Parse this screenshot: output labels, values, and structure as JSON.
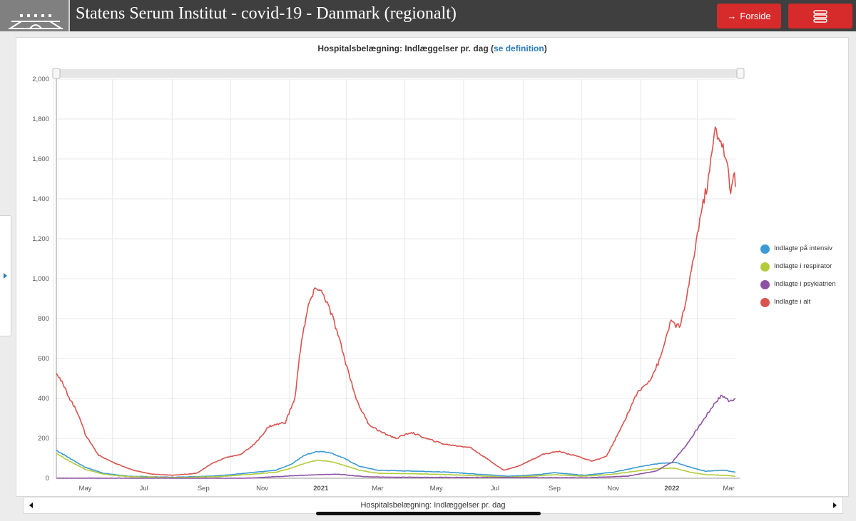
{
  "header": {
    "title": "Statens Serum Institut - covid-19 - Danmark (regionalt)",
    "forside_label": "Forside",
    "menu_icon": "hamburger-icon"
  },
  "chart": {
    "title_main": "Hospitalsbelægning: Indlæggelser pr. dag (",
    "title_link": "se definition",
    "title_end": ")",
    "bottom_label": "Hospitalsbelægning: Indlæggelser pr. dag"
  },
  "legend": [
    {
      "label": "Indlagte på intensiv",
      "color": "#3a9ad4"
    },
    {
      "label": "Indlagte i respirator",
      "color": "#b3cc3c"
    },
    {
      "label": "Indlagte i psykiatrien",
      "color": "#8e52a5"
    },
    {
      "label": "Indlagte i alt",
      "color": "#d9534f"
    }
  ],
  "chart_data": {
    "type": "line",
    "x_ticks": [
      {
        "label": "May",
        "date": "2020-05-01",
        "bold": false
      },
      {
        "label": "Jul",
        "date": "2020-07-01",
        "bold": false
      },
      {
        "label": "Sep",
        "date": "2020-09-01",
        "bold": false
      },
      {
        "label": "Nov",
        "date": "2020-11-01",
        "bold": false
      },
      {
        "label": "2021",
        "date": "2021-01-01",
        "bold": true
      },
      {
        "label": "Mar",
        "date": "2021-03-01",
        "bold": false
      },
      {
        "label": "May",
        "date": "2021-05-01",
        "bold": false
      },
      {
        "label": "Jul",
        "date": "2021-07-01",
        "bold": false
      },
      {
        "label": "Sep",
        "date": "2021-09-01",
        "bold": false
      },
      {
        "label": "Nov",
        "date": "2021-11-01",
        "bold": false
      },
      {
        "label": "2022",
        "date": "2022-01-01",
        "bold": true
      },
      {
        "label": "Mar",
        "date": "2022-03-01",
        "bold": false
      }
    ],
    "y_ticks": [
      "0",
      "200",
      "400",
      "600",
      "800",
      "1,000",
      "1,200",
      "1,400",
      "1,600",
      "1,800",
      "2,000"
    ],
    "ylim": [
      0,
      2000
    ],
    "xlim": [
      "2020-04-01",
      "2022-03-08"
    ],
    "grid": true,
    "legend_position": "right",
    "series": [
      {
        "name": "Indlagte på intensiv",
        "color": "#3a9ad4",
        "points": [
          [
            "2020-04-01",
            140
          ],
          [
            "2020-04-15",
            100
          ],
          [
            "2020-05-01",
            55
          ],
          [
            "2020-05-20",
            25
          ],
          [
            "2020-06-15",
            10
          ],
          [
            "2020-08-01",
            5
          ],
          [
            "2020-09-15",
            12
          ],
          [
            "2020-10-15",
            25
          ],
          [
            "2020-11-15",
            40
          ],
          [
            "2020-12-01",
            70
          ],
          [
            "2020-12-15",
            115
          ],
          [
            "2020-12-28",
            135
          ],
          [
            "2021-01-10",
            130
          ],
          [
            "2021-01-25",
            100
          ],
          [
            "2021-02-10",
            60
          ],
          [
            "2021-03-01",
            40
          ],
          [
            "2021-04-15",
            35
          ],
          [
            "2021-05-15",
            30
          ],
          [
            "2021-06-15",
            20
          ],
          [
            "2021-07-15",
            10
          ],
          [
            "2021-08-15",
            18
          ],
          [
            "2021-09-01",
            28
          ],
          [
            "2021-10-01",
            15
          ],
          [
            "2021-11-01",
            30
          ],
          [
            "2021-12-01",
            60
          ],
          [
            "2021-12-20",
            75
          ],
          [
            "2022-01-05",
            80
          ],
          [
            "2022-01-20",
            55
          ],
          [
            "2022-02-05",
            35
          ],
          [
            "2022-02-25",
            40
          ],
          [
            "2022-03-08",
            30
          ]
        ]
      },
      {
        "name": "Indlagte i respirator",
        "color": "#b3cc3c",
        "points": [
          [
            "2020-04-01",
            125
          ],
          [
            "2020-04-15",
            85
          ],
          [
            "2020-05-01",
            45
          ],
          [
            "2020-05-20",
            20
          ],
          [
            "2020-06-15",
            8
          ],
          [
            "2020-08-01",
            3
          ],
          [
            "2020-09-15",
            8
          ],
          [
            "2020-10-15",
            18
          ],
          [
            "2020-11-15",
            30
          ],
          [
            "2020-12-01",
            50
          ],
          [
            "2020-12-15",
            75
          ],
          [
            "2020-12-28",
            90
          ],
          [
            "2021-01-10",
            85
          ],
          [
            "2021-01-25",
            65
          ],
          [
            "2021-02-10",
            40
          ],
          [
            "2021-03-01",
            25
          ],
          [
            "2021-04-15",
            22
          ],
          [
            "2021-05-15",
            18
          ],
          [
            "2021-06-15",
            12
          ],
          [
            "2021-07-15",
            5
          ],
          [
            "2021-08-15",
            12
          ],
          [
            "2021-09-01",
            18
          ],
          [
            "2021-10-01",
            10
          ],
          [
            "2021-11-01",
            20
          ],
          [
            "2021-12-01",
            40
          ],
          [
            "2021-12-20",
            50
          ],
          [
            "2022-01-05",
            50
          ],
          [
            "2022-01-20",
            30
          ],
          [
            "2022-02-05",
            18
          ],
          [
            "2022-02-25",
            15
          ],
          [
            "2022-03-08",
            10
          ]
        ]
      },
      {
        "name": "Indlagte i psykiatrien",
        "color": "#8e52a5",
        "points": [
          [
            "2020-04-01",
            0
          ],
          [
            "2020-10-15",
            0
          ],
          [
            "2020-12-01",
            12
          ],
          [
            "2020-12-28",
            18
          ],
          [
            "2021-01-20",
            20
          ],
          [
            "2021-02-15",
            8
          ],
          [
            "2021-03-15",
            5
          ],
          [
            "2021-10-01",
            2
          ],
          [
            "2021-11-15",
            10
          ],
          [
            "2021-12-15",
            35
          ],
          [
            "2022-01-01",
            80
          ],
          [
            "2022-01-15",
            160
          ],
          [
            "2022-02-01",
            280
          ],
          [
            "2022-02-15",
            380
          ],
          [
            "2022-02-22",
            415
          ],
          [
            "2022-03-01",
            390
          ],
          [
            "2022-03-08",
            400
          ]
        ]
      },
      {
        "name": "Indlagte i alt",
        "color": "#d9534f",
        "points": [
          [
            "2020-04-01",
            535
          ],
          [
            "2020-04-15",
            400
          ],
          [
            "2020-04-25",
            310
          ],
          [
            "2020-05-01",
            220
          ],
          [
            "2020-05-15",
            115
          ],
          [
            "2020-06-01",
            75
          ],
          [
            "2020-06-20",
            40
          ],
          [
            "2020-07-10",
            20
          ],
          [
            "2020-08-01",
            15
          ],
          [
            "2020-08-25",
            25
          ],
          [
            "2020-09-10",
            75
          ],
          [
            "2020-09-25",
            105
          ],
          [
            "2020-10-10",
            120
          ],
          [
            "2020-10-25",
            175
          ],
          [
            "2020-11-08",
            260
          ],
          [
            "2020-11-25",
            280
          ],
          [
            "2020-12-05",
            400
          ],
          [
            "2020-12-12",
            700
          ],
          [
            "2020-12-20",
            880
          ],
          [
            "2020-12-28",
            960
          ],
          [
            "2021-01-05",
            910
          ],
          [
            "2021-01-15",
            780
          ],
          [
            "2021-01-28",
            560
          ],
          [
            "2021-02-08",
            380
          ],
          [
            "2021-02-20",
            270
          ],
          [
            "2021-03-05",
            230
          ],
          [
            "2021-03-20",
            200
          ],
          [
            "2021-04-05",
            230
          ],
          [
            "2021-04-20",
            200
          ],
          [
            "2021-05-10",
            170
          ],
          [
            "2021-06-05",
            155
          ],
          [
            "2021-06-25",
            90
          ],
          [
            "2021-07-10",
            40
          ],
          [
            "2021-07-25",
            60
          ],
          [
            "2021-08-20",
            120
          ],
          [
            "2021-09-05",
            135
          ],
          [
            "2021-09-25",
            110
          ],
          [
            "2021-10-10",
            85
          ],
          [
            "2021-10-25",
            110
          ],
          [
            "2021-11-10",
            260
          ],
          [
            "2021-11-25",
            420
          ],
          [
            "2021-12-10",
            500
          ],
          [
            "2021-12-20",
            600
          ],
          [
            "2021-12-30",
            780
          ],
          [
            "2022-01-10",
            760
          ],
          [
            "2022-01-20",
            1000
          ],
          [
            "2022-01-30",
            1300
          ],
          [
            "2022-02-08",
            1500
          ],
          [
            "2022-02-15",
            1750
          ],
          [
            "2022-02-22",
            1680
          ],
          [
            "2022-02-28",
            1550
          ],
          [
            "2022-03-03",
            1420
          ],
          [
            "2022-03-06",
            1550
          ],
          [
            "2022-03-08",
            1460
          ]
        ]
      }
    ]
  }
}
